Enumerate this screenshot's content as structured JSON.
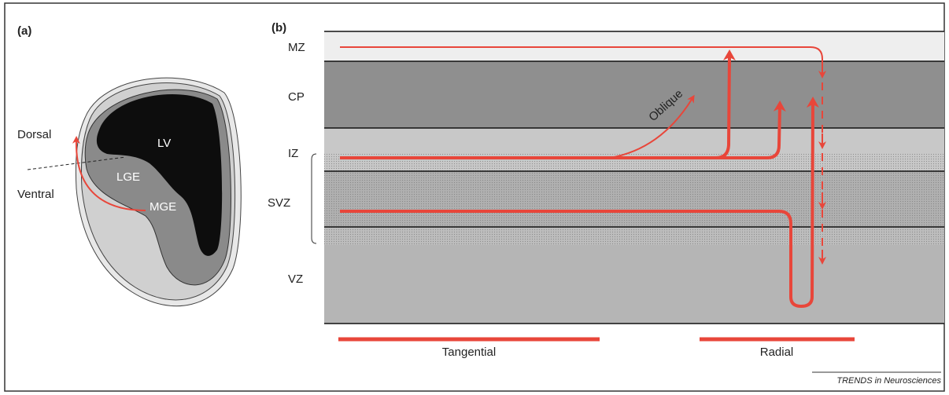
{
  "panel_a": {
    "label": "(a)",
    "dorsal": "Dorsal",
    "ventral": "Ventral",
    "lv": "LV",
    "lge": "LGE",
    "mge": "MGE"
  },
  "panel_b": {
    "label": "(b)",
    "layers": [
      "MZ",
      "CP",
      "IZ",
      "SVZ",
      "VZ"
    ],
    "oblique": "Oblique",
    "modes": [
      "Tangential",
      "Radial"
    ]
  },
  "footer": "TRENDS in Neurosciences"
}
